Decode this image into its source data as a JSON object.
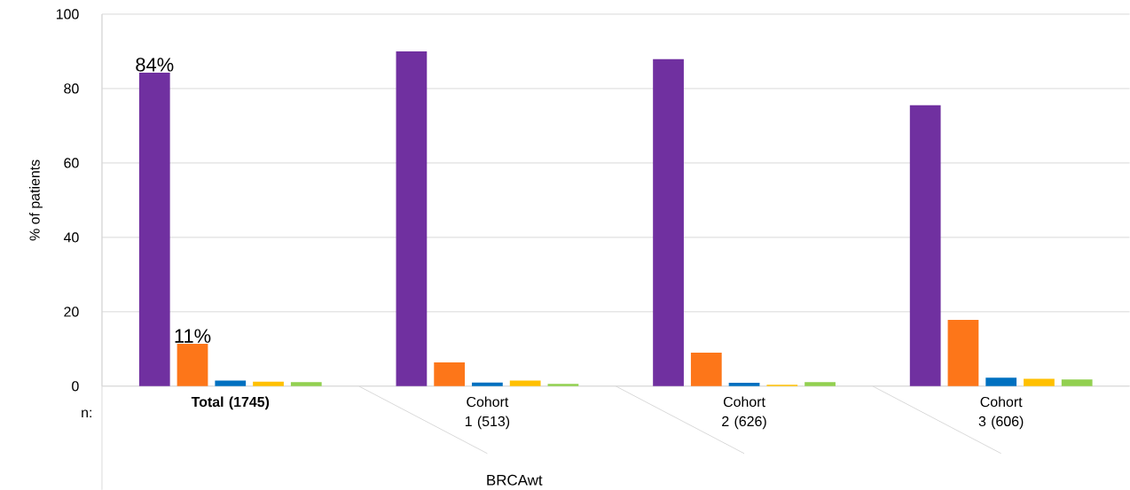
{
  "chart_data": {
    "type": "bar",
    "ylabel": "% of patients",
    "xlabel": "BRCAwt",
    "categories": [
      "**Total (1745)**",
      "Cohort 1 (513)",
      "Cohort 2 (626)",
      "Cohort 3 (606)"
    ],
    "series": [
      {
        "color": "#7030a0",
        "values": [
          84.3,
          90,
          87.9,
          75.5
        ],
        "value_labels": [
          "84%",
          null,
          null,
          null
        ]
      },
      {
        "color": "#fd7619",
        "values": [
          11.4,
          6.4,
          9.0,
          17.8
        ],
        "value_labels": [
          "11%",
          null,
          null,
          null
        ]
      },
      {
        "color": "#0070c0",
        "values": [
          1.5,
          1.0,
          0.9,
          2.3
        ]
      },
      {
        "color": "#ffc000",
        "values": [
          1.2,
          1.5,
          0.4,
          2.0
        ]
      },
      {
        "color": "#92d050",
        "values": [
          1.1,
          0.6,
          1.1,
          1.8
        ]
      }
    ],
    "ylim": [
      0,
      100
    ],
    "yticks": [
      0,
      20,
      40,
      60,
      80,
      100
    ],
    "grid": "y",
    "annotations": [
      "n:"
    ]
  }
}
